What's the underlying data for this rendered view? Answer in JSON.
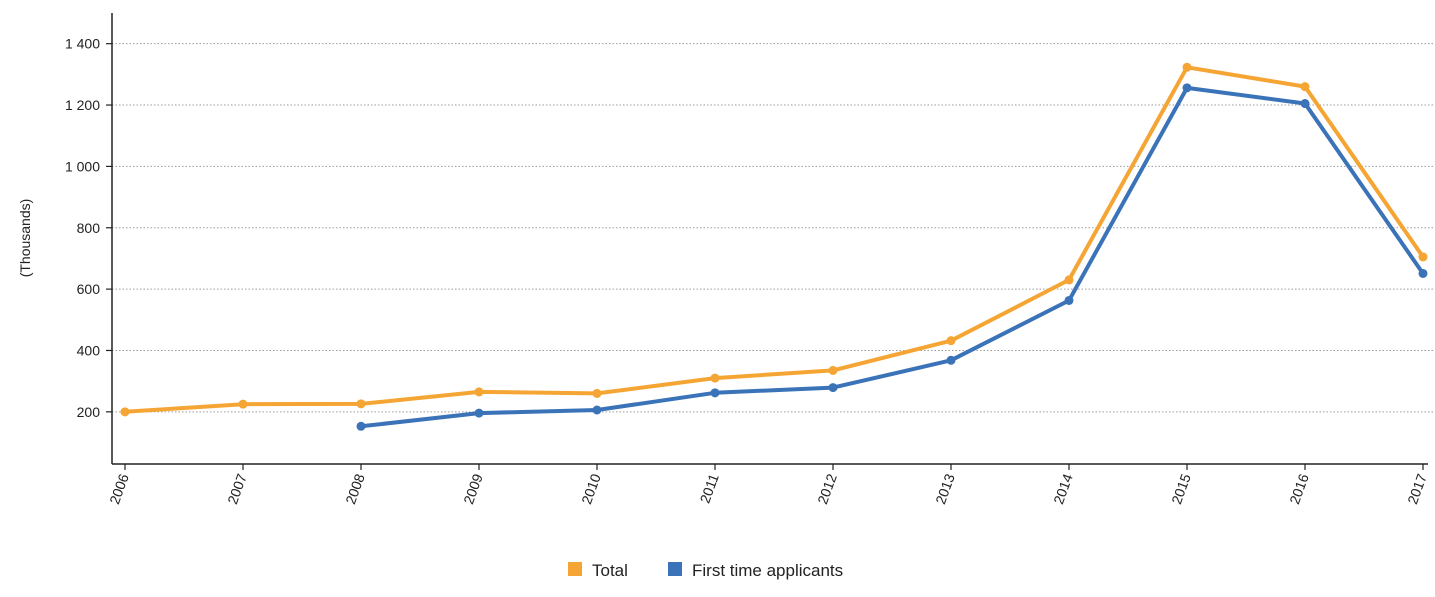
{
  "chart_data": {
    "type": "line",
    "ylabel": "(Thousands)",
    "xlabel": "",
    "categories": [
      "2006",
      "2007",
      "2008",
      "2009",
      "2010",
      "2011",
      "2012",
      "2013",
      "2014",
      "2015",
      "2016",
      "2017"
    ],
    "ylim": [
      30,
      1500
    ],
    "yticks": [
      200,
      400,
      600,
      800,
      1000,
      1200,
      1400
    ],
    "ytick_labels": [
      "200",
      "400",
      "600",
      "800",
      "1 000",
      "1 200",
      "1 400"
    ],
    "grid": "horizontal-dotted",
    "legend_position": "bottom-center",
    "series": [
      {
        "name": "Total",
        "color": "#f5a533",
        "values": [
          200,
          225,
          226,
          265,
          260,
          310,
          335,
          432,
          630,
          1323,
          1260,
          705
        ]
      },
      {
        "name": "First time applicants",
        "color": "#3a73b8",
        "values": [
          null,
          null,
          153,
          196,
          206,
          262,
          279,
          368,
          563,
          1256,
          1205,
          651
        ]
      }
    ]
  }
}
